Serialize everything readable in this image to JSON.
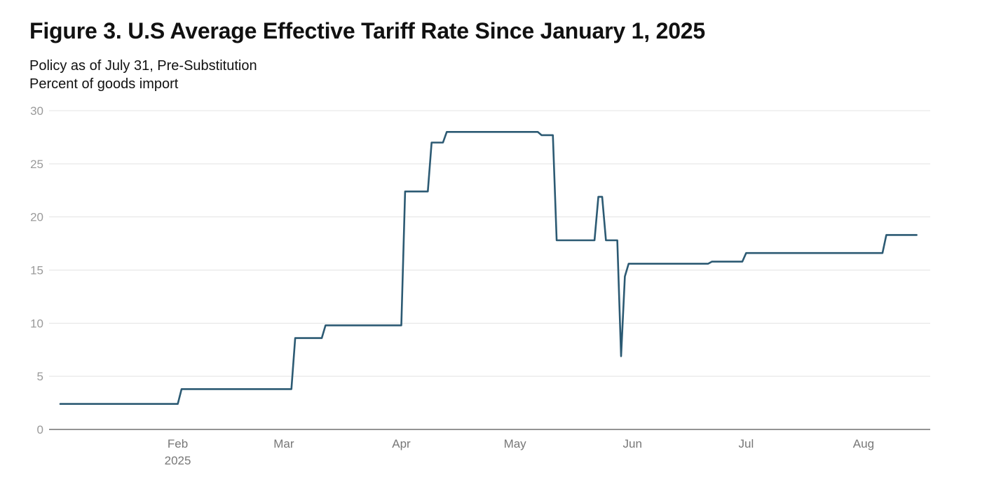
{
  "chart_data": {
    "type": "line",
    "title": "Figure 3. U.S Average Effective Tariff Rate Since January 1, 2025",
    "subtitle": "Policy as of July 31, Pre-Substitution",
    "ylabel": "Percent of goods import",
    "xlabel": "",
    "ylim": [
      0,
      30
    ],
    "yticks": [
      0,
      5,
      10,
      15,
      20,
      25,
      30
    ],
    "xlim": [
      "2025-01-01",
      "2025-08-16"
    ],
    "xticks": [
      {
        "date": "2025-02-01",
        "label": "Feb",
        "sublabel": "2025"
      },
      {
        "date": "2025-03-01",
        "label": "Mar",
        "sublabel": ""
      },
      {
        "date": "2025-04-01",
        "label": "Apr",
        "sublabel": ""
      },
      {
        "date": "2025-05-01",
        "label": "May",
        "sublabel": ""
      },
      {
        "date": "2025-06-01",
        "label": "Jun",
        "sublabel": ""
      },
      {
        "date": "2025-07-01",
        "label": "Jul",
        "sublabel": ""
      },
      {
        "date": "2025-08-01",
        "label": "Aug",
        "sublabel": ""
      }
    ],
    "grid": true,
    "legend": "none",
    "line_color": "#2c5a73",
    "series": [
      {
        "points": [
          [
            "2025-01-01",
            2.4
          ],
          [
            "2025-02-01",
            2.4
          ],
          [
            "2025-02-02",
            3.8
          ],
          [
            "2025-03-03",
            3.8
          ],
          [
            "2025-03-04",
            8.6
          ],
          [
            "2025-03-11",
            8.6
          ],
          [
            "2025-03-12",
            9.8
          ],
          [
            "2025-04-01",
            9.8
          ],
          [
            "2025-04-02",
            22.4
          ],
          [
            "2025-04-08",
            22.4
          ],
          [
            "2025-04-09",
            27.0
          ],
          [
            "2025-04-12",
            27.0
          ],
          [
            "2025-04-13",
            28.0
          ],
          [
            "2025-05-07",
            28.0
          ],
          [
            "2025-05-08",
            27.7
          ],
          [
            "2025-05-11",
            27.7
          ],
          [
            "2025-05-12",
            17.8
          ],
          [
            "2025-05-22",
            17.8
          ],
          [
            "2025-05-23",
            21.9
          ],
          [
            "2025-05-24",
            21.9
          ],
          [
            "2025-05-25",
            17.8
          ],
          [
            "2025-05-28",
            17.8
          ],
          [
            "2025-05-29",
            6.9
          ],
          [
            "2025-05-30",
            14.4
          ],
          [
            "2025-05-31",
            15.6
          ],
          [
            "2025-06-21",
            15.6
          ],
          [
            "2025-06-22",
            15.8
          ],
          [
            "2025-06-30",
            15.8
          ],
          [
            "2025-07-01",
            16.6
          ],
          [
            "2025-08-06",
            16.6
          ],
          [
            "2025-08-07",
            18.3
          ],
          [
            "2025-08-15",
            18.3
          ]
        ]
      }
    ]
  }
}
